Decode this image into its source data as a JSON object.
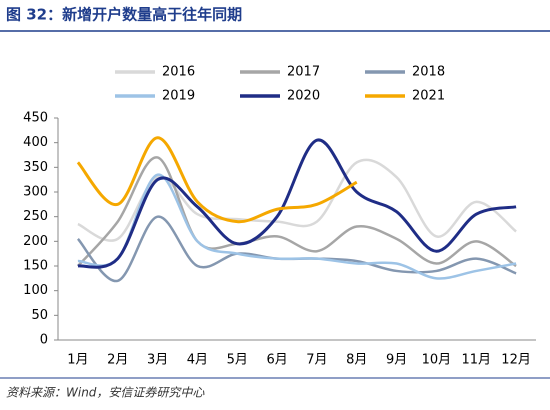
{
  "chart_data": {
    "type": "line",
    "title": "图 32：新增开户数量高于往年同期",
    "source": "资料来源：Wind，安信证券研究中心",
    "categories": [
      "1月",
      "2月",
      "3月",
      "4月",
      "5月",
      "6月",
      "7月",
      "8月",
      "9月",
      "10月",
      "11月",
      "12月"
    ],
    "series": [
      {
        "name": "2016",
        "color": "#d9d9d9",
        "values": [
          235,
          205,
          330,
          255,
          245,
          240,
          240,
          360,
          330,
          210,
          280,
          220
        ]
      },
      {
        "name": "2017",
        "color": "#a6a6a6",
        "values": [
          150,
          240,
          370,
          200,
          195,
          210,
          180,
          230,
          205,
          155,
          200,
          150
        ]
      },
      {
        "name": "2018",
        "color": "#8497b0",
        "values": [
          205,
          120,
          250,
          150,
          175,
          165,
          165,
          160,
          140,
          140,
          165,
          135
        ]
      },
      {
        "name": "2019",
        "color": "#9dc3e6",
        "values": [
          160,
          165,
          335,
          200,
          175,
          165,
          165,
          155,
          155,
          125,
          140,
          155
        ]
      },
      {
        "name": "2020",
        "color": "#1f2d86",
        "values": [
          150,
          165,
          325,
          270,
          195,
          250,
          405,
          300,
          260,
          180,
          255,
          270
        ]
      },
      {
        "name": "2021",
        "color": "#f5a800",
        "values": [
          360,
          275,
          410,
          280,
          240,
          265,
          275,
          320,
          null,
          null,
          null,
          null
        ]
      }
    ],
    "ylim": [
      0,
      450
    ],
    "yticks": [
      0,
      50,
      100,
      150,
      200,
      250,
      300,
      350,
      400,
      450
    ]
  }
}
